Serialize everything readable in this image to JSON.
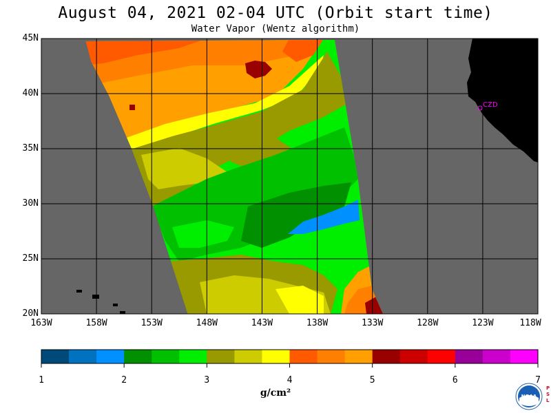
{
  "title": "August 04, 2021  02-04 UTC  (Orbit start time)",
  "subtitle": "Water Vapor (Wentz algorithm)",
  "lat_labels": [
    "45N",
    "40N",
    "35N",
    "30N",
    "25N",
    "20N"
  ],
  "lon_labels": [
    "163W",
    "158W",
    "153W",
    "148W",
    "143W",
    "138W",
    "133W",
    "128W",
    "123W",
    "118W"
  ],
  "colorbar": {
    "tick_labels": [
      "1",
      "2",
      "3",
      "4",
      "5",
      "6",
      "7"
    ],
    "units": "g/cm²",
    "colors": [
      "#004a7a",
      "#0072c0",
      "#0090ff",
      "#009000",
      "#00c000",
      "#00ee00",
      "#999900",
      "#cccc00",
      "#ffff00",
      "#ff5a00",
      "#ff8000",
      "#ff9f00",
      "#990000",
      "#cc0000",
      "#ff0000",
      "#990099",
      "#cc00cc",
      "#ff00ff"
    ]
  },
  "annotation": "CZD",
  "logo_text": "NOAA",
  "psl_letters": [
    "P",
    "S",
    "L"
  ],
  "style": {
    "land_color": "#000000",
    "missing_color": "#666666",
    "grid_color": "#000000",
    "annotation_color": "#ff00ff"
  }
}
